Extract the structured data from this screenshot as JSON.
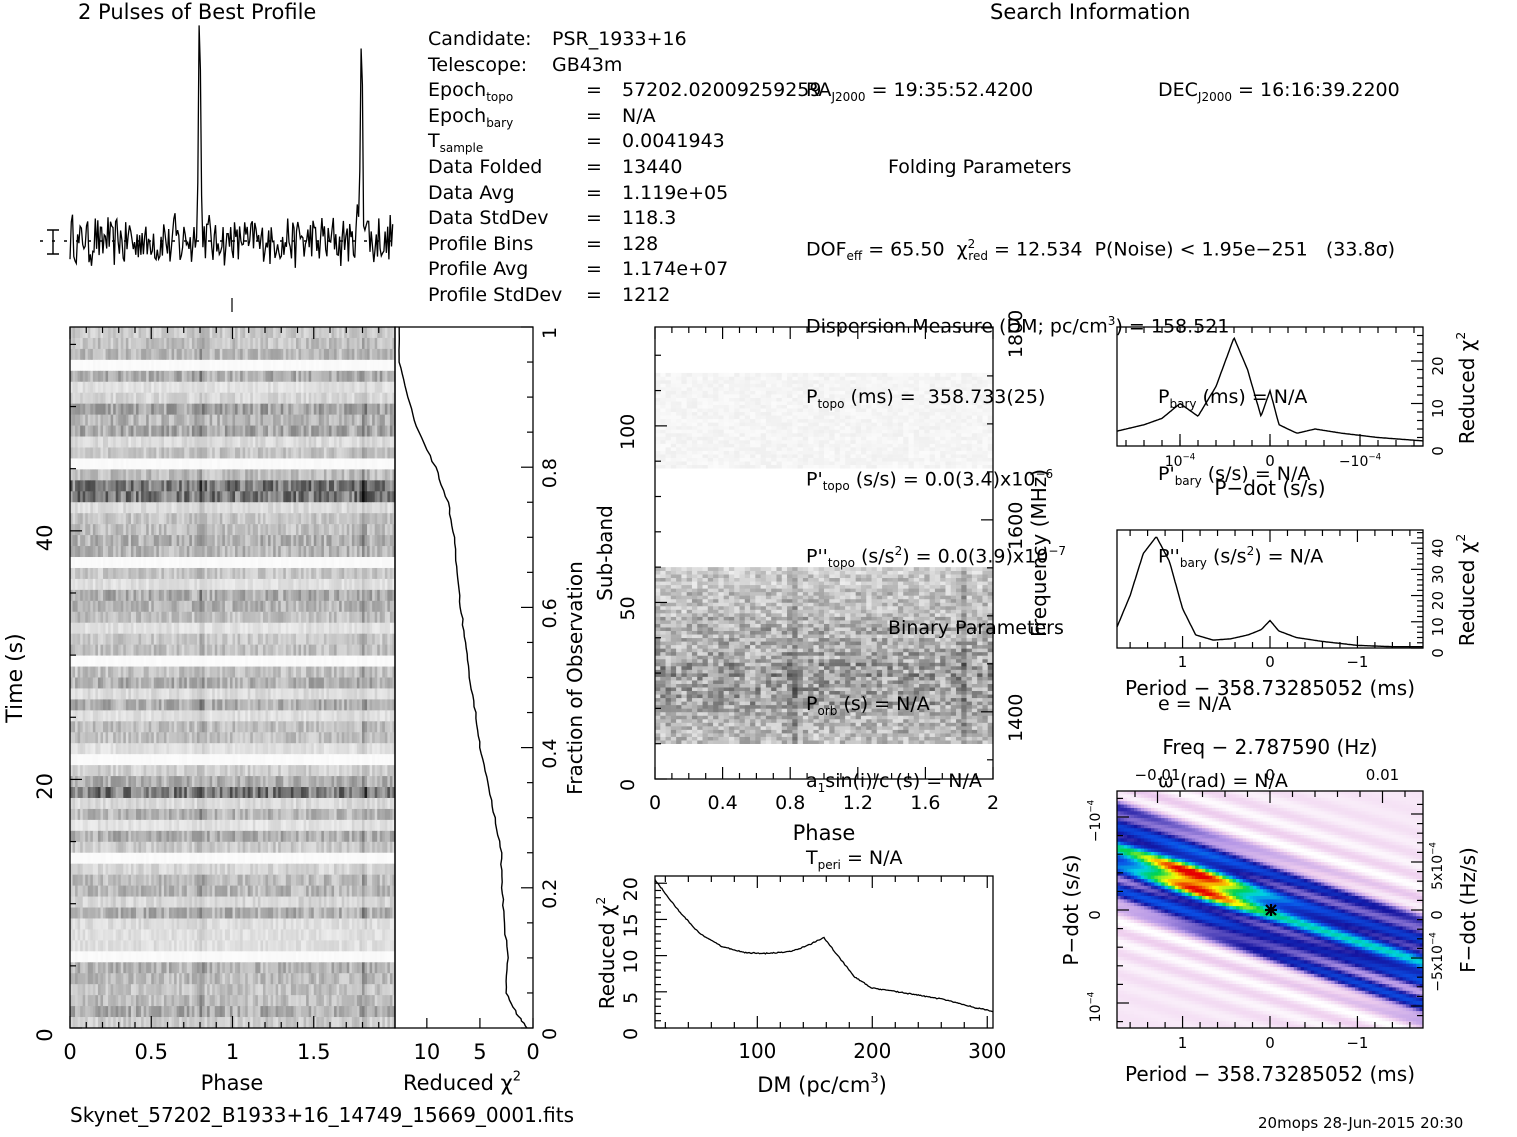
{
  "header": {
    "profile_title": "2 Pulses of Best Profile",
    "search_title": "Search Information",
    "filename": "Skynet_57202_B1933+16_14749_15669_0001.fits",
    "stamp": "20mops 28-Jun-2015 20:30"
  },
  "info_left": [
    {
      "key": "Candidate:",
      "eq": "",
      "val": "PSR_1933+16"
    },
    {
      "key": "Telescope:",
      "eq": "",
      "val": "GB43m"
    },
    {
      "key": "Epoch",
      "sub": "topo",
      "eq": "=",
      "val": "57202.02009259259"
    },
    {
      "key": "Epoch",
      "sub": "bary",
      "eq": "=",
      "val": "N/A"
    },
    {
      "key": "T",
      "sub": "sample",
      "eq": "=",
      "val": "0.0041943"
    },
    {
      "key": "Data Folded",
      "eq": "=",
      "val": "13440"
    },
    {
      "key": "Data Avg",
      "eq": "=",
      "val": "1.119e+05"
    },
    {
      "key": "Data StdDev",
      "eq": "=",
      "val": "118.3"
    },
    {
      "key": "Profile Bins",
      "eq": "=",
      "val": "128"
    },
    {
      "key": "Profile Avg",
      "eq": "=",
      "val": "1.174e+07"
    },
    {
      "key": "Profile StdDev",
      "eq": "=",
      "val": "1212"
    }
  ],
  "info_mid": {
    "ra_key": "RA",
    "ra_sub": "J2000",
    "ra_val": "= 19:35:52.4200",
    "dec_key": "DEC",
    "dec_sub": "J2000",
    "dec_val": "= 16:16:39.2200",
    "folding_title": "Folding Parameters",
    "dof_key": "DOF",
    "dof_sub": "eff",
    "dof_val": "= 65.50",
    "chi_key": "χ",
    "chi_sup": "2",
    "chi_sub": "red",
    "chi_val": "= 12.534",
    "noise": "P(Noise) < 1.95e−251   (33.8σ)",
    "dm_line": "Dispersion Measure (DM; pc/cm",
    "dm_sup": "3",
    "dm_val": ") = 158.521",
    "ptopo_key": "P",
    "ptopo_sub": "topo",
    "ptopo_val": "(ms) =  358.733(25)",
    "pbary_key": "P",
    "pbary_sub": "bary",
    "pbary_val": "(ms) = N/A",
    "pdtopo_key": "P'",
    "pdtopo_sub": "topo",
    "pdtopo_val": "(s/s) = 0.0(3.4)x10",
    "pdtopo_exp": "−6",
    "pdbary_key": "P'",
    "pdbary_sub": "bary",
    "pdbary_val": "(s/s) = N/A",
    "pddtopo_key": "P''",
    "pddtopo_sub": "topo",
    "pddtopo_val": "(s/s",
    "pddtopo_sup": "2",
    "pddtopo_val2": ") = 0.0(3.9)x10",
    "pddtopo_exp": "−7",
    "pddbary_key": "P''",
    "pddbary_sub": "bary",
    "pddbary_val": "(s/s",
    "pddbary_sup": "2",
    "pddbary_val2": ") = N/A",
    "binary_title": "Binary Parameters",
    "porb_key": "P",
    "porb_sub": "orb",
    "porb_val": "(s) = N/A",
    "e_line": "e = N/A",
    "a1_line": "a",
    "a1_sub": "1",
    "a1_val": "sin(i)/c (s) = N/A",
    "omega_line": "ω (rad) = N/A",
    "tperi_key": "T",
    "tperi_sub": "peri",
    "tperi_val": "= N/A"
  },
  "labels": {
    "time_axis": "Time (s)",
    "phase": "Phase",
    "reduced_chi2": "Reduced χ",
    "chi_sup": "2",
    "fraction": "Fraction of Observation",
    "subband": "Sub-band",
    "frequency": "Frequency (MHz)",
    "dm_axis": "DM (pc/cm",
    "dm_axis_sup": "3",
    "dm_axis_end": ")",
    "pdot_axis": "P−dot (s/s)",
    "period_axis": "Period − 358.73285052 (ms)",
    "freq_axis": "Freq − 2.787590 (Hz)",
    "fdot_axis": "F−dot (Hz/s)"
  },
  "chart_data": [
    {
      "name": "profile",
      "type": "line",
      "title": "2 Pulses of Best Profile",
      "x_range": [
        0,
        2
      ],
      "pulse_peak_phases": [
        0.8,
        1.8
      ],
      "peak_height_sigma": 10
    },
    {
      "name": "time_phase",
      "type": "heatmap",
      "xlabel": "Phase",
      "ylabel": "Time (s)",
      "xlim": [
        0,
        2
      ],
      "ylim": [
        0,
        56.4
      ],
      "x_ticks": [
        "0",
        "0.5",
        "1",
        "1.5"
      ],
      "y_ticks": [
        "0",
        "20",
        "40"
      ],
      "bright_rows_time_s": [
        19.0,
        43.0
      ]
    },
    {
      "name": "time_chi2",
      "type": "line",
      "xlabel": "Reduced χ2",
      "ylabel": "Fraction of Observation",
      "xlim": [
        13,
        0
      ],
      "x_ticks": [
        "10",
        "5",
        "0"
      ],
      "y_ticks": [
        "0",
        "0.2",
        "0.4",
        "0.6",
        "0.8",
        "1"
      ],
      "fraction": [
        0,
        0.02,
        0.05,
        0.1,
        0.15,
        0.2,
        0.25,
        0.3,
        0.35,
        0.4,
        0.45,
        0.5,
        0.55,
        0.6,
        0.65,
        0.7,
        0.75,
        0.8,
        0.85,
        0.9,
        0.95,
        1.0
      ],
      "chi2": [
        0.6,
        1.5,
        2.5,
        2.4,
        2.7,
        2.9,
        3.0,
        3.6,
        4.3,
        5.0,
        5.4,
        6.0,
        6.4,
        6.8,
        7.2,
        7.4,
        8.0,
        9.2,
        10.8,
        11.8,
        12.6,
        12.6
      ]
    },
    {
      "name": "subband_phase",
      "type": "heatmap",
      "xlabel": "Phase",
      "ylabel": "Sub-band",
      "ylabel2": "Frequency (MHz)",
      "xlim": [
        0,
        2
      ],
      "ylim": [
        0,
        128
      ],
      "x_ticks": [
        "0",
        "0.4",
        "0.8",
        "1.2",
        "1.6",
        "2"
      ],
      "y_ticks": [
        "0",
        "50",
        "100"
      ],
      "freq_ticks": [
        "1400",
        "1600",
        "1800"
      ],
      "empty_subband_ranges": [
        [
          0,
          10
        ],
        [
          60,
          88
        ],
        [
          115,
          128
        ]
      ],
      "faint_subband_ranges": [
        [
          88,
          115
        ]
      ],
      "pulse_phases": [
        0.8,
        1.8
      ]
    },
    {
      "name": "dm_chi2",
      "type": "line",
      "xlabel": "DM (pc/cm3)",
      "ylabel": "Reduced χ2",
      "xlim": [
        11,
        305
      ],
      "ylim": [
        0,
        21
      ],
      "x_ticks": [
        "100",
        "200",
        "300"
      ],
      "y_ticks": [
        "0",
        "5",
        "10",
        "15",
        "20"
      ],
      "x": [
        11,
        30,
        50,
        70,
        90,
        110,
        130,
        145,
        158,
        170,
        185,
        200,
        230,
        260,
        290,
        305
      ],
      "y": [
        20.5,
        16.5,
        13.0,
        11.2,
        10.4,
        10.3,
        10.6,
        11.5,
        12.5,
        10.0,
        7.0,
        5.5,
        4.8,
        4.0,
        2.8,
        2.3
      ]
    },
    {
      "name": "pdot_chi2",
      "type": "line",
      "xlabel": "P−dot (s/s)",
      "ylabel": "Reduced χ2",
      "xlim": [
        0.00017,
        -0.00017
      ],
      "ylim": [
        0,
        28
      ],
      "x_ticks": [
        "10−4",
        "0",
        "−10−4"
      ],
      "y_ticks": [
        "0",
        "10",
        "20"
      ],
      "x": [
        0.00017,
        0.00014,
        0.00012,
        0.0001,
        8e-05,
        6e-05,
        4e-05,
        2.5e-05,
        1e-05,
        0.0,
        -1e-05,
        -3e-05,
        -5e-05,
        -8e-05,
        -0.00012,
        -0.00017
      ],
      "y": [
        3.5,
        5.0,
        6.5,
        10.0,
        7.0,
        14.0,
        25.5,
        18.0,
        7.0,
        13.0,
        5.0,
        3.0,
        4.0,
        3.0,
        2.0,
        1.2
      ]
    },
    {
      "name": "period_chi2",
      "type": "line",
      "xlabel": "Period − 358.73285052 (ms)",
      "ylabel": "Reduced χ2",
      "xlim": [
        1.75,
        -1.75
      ],
      "ylim": [
        0,
        45
      ],
      "x_ticks": [
        "1",
        "0",
        "−1"
      ],
      "y_ticks": [
        "0",
        "10",
        "20",
        "30",
        "40"
      ],
      "x": [
        1.75,
        1.6,
        1.45,
        1.3,
        1.15,
        1.0,
        0.85,
        0.65,
        0.45,
        0.25,
        0.1,
        0.0,
        -0.1,
        -0.3,
        -0.6,
        -1.0,
        -1.4,
        -1.75
      ],
      "y": [
        8.0,
        20.0,
        36.0,
        42.5,
        33.0,
        15.0,
        5.0,
        3.0,
        3.5,
        5.0,
        7.0,
        10.5,
        6.5,
        4.0,
        2.5,
        1.0,
        0.5,
        0.5
      ]
    },
    {
      "name": "period_pdot",
      "type": "heatmap",
      "xlabel": "Period − 358.73285052 (ms)",
      "ylabel": "P−dot (s/s)",
      "x2label": "Freq − 2.787590 (Hz)",
      "y2label": "F−dot (Hz/s)",
      "x_ticks": [
        "1",
        "0",
        "−1"
      ],
      "y_ticks": [
        "−10−4",
        "0",
        "10−4"
      ],
      "x2_ticks": [
        "−0.01",
        "0",
        "0.01"
      ],
      "y2_ticks": [
        "5x10−4",
        "0",
        "−5x10−4"
      ],
      "best_fit": [
        0,
        0
      ]
    }
  ]
}
